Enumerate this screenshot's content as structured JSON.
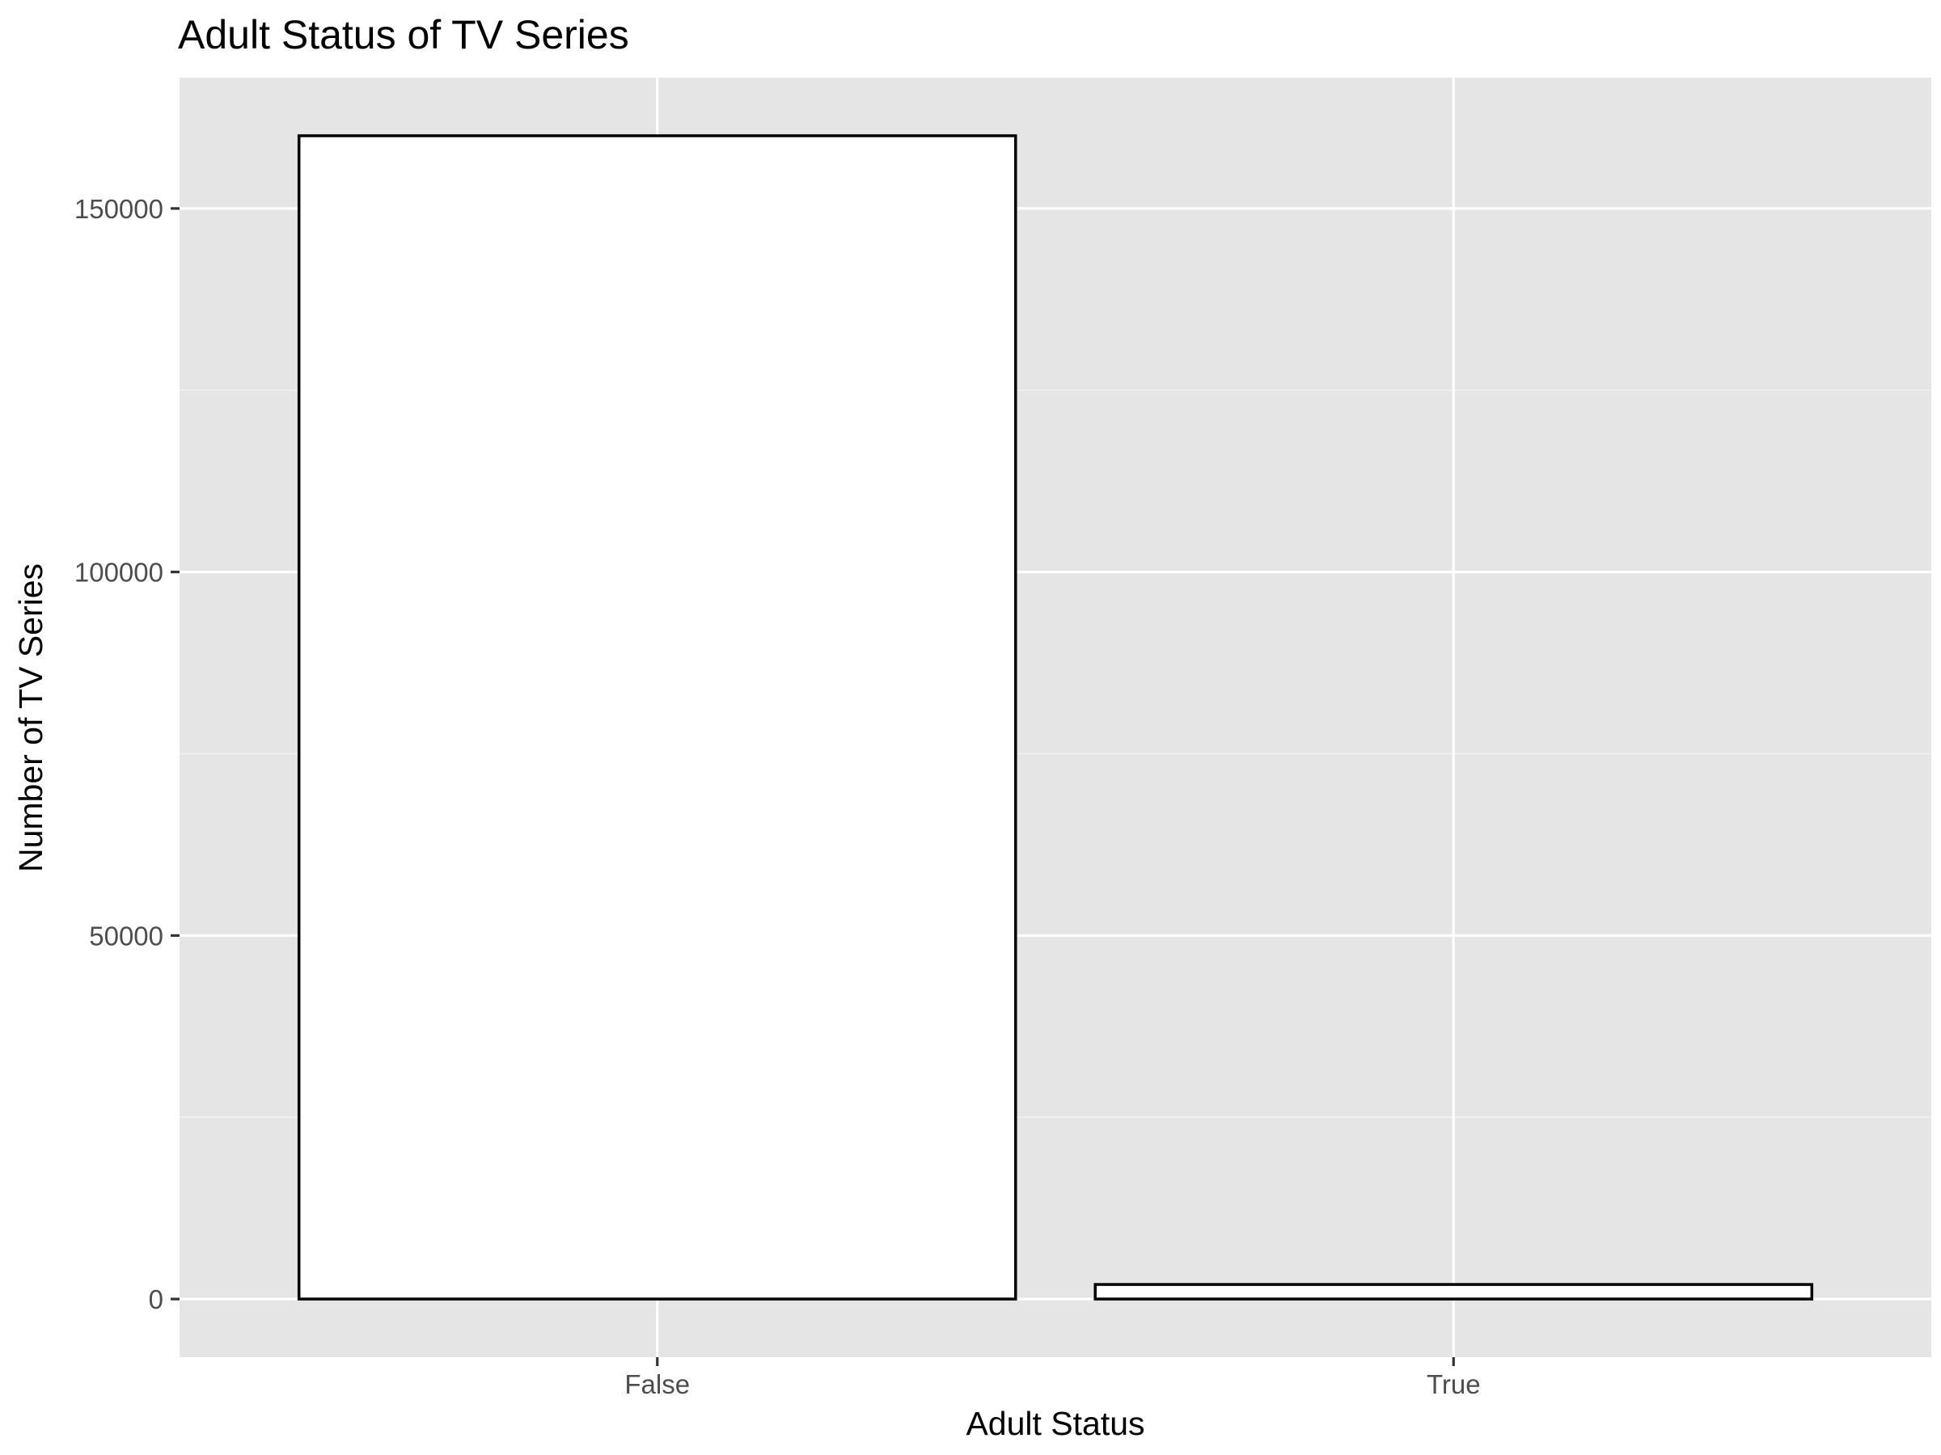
{
  "colors": {
    "panel_background": "#E5E5E5",
    "grid_major": "#FFFFFF",
    "grid_minor": "#F2F2F2",
    "bar_fill": "#FFFFFF",
    "bar_outline": "#000000",
    "tick_text": "#4D4D4D",
    "axis_ticks": "#333333"
  },
  "chart_data": {
    "type": "bar",
    "title": "Adult Status of TV Series",
    "xlabel": "Adult Status",
    "ylabel": "Number of TV Series",
    "categories": [
      "False",
      "True"
    ],
    "values": [
      160000,
      2000
    ],
    "ylim": [
      -8000,
      168000
    ],
    "y_ticks": [
      0,
      50000,
      100000,
      150000
    ],
    "y_tick_labels": [
      "0",
      "50000",
      "100000",
      "150000"
    ],
    "y_minor_ticks": [
      25000,
      75000,
      125000
    ],
    "grid": true,
    "legend": "none"
  }
}
